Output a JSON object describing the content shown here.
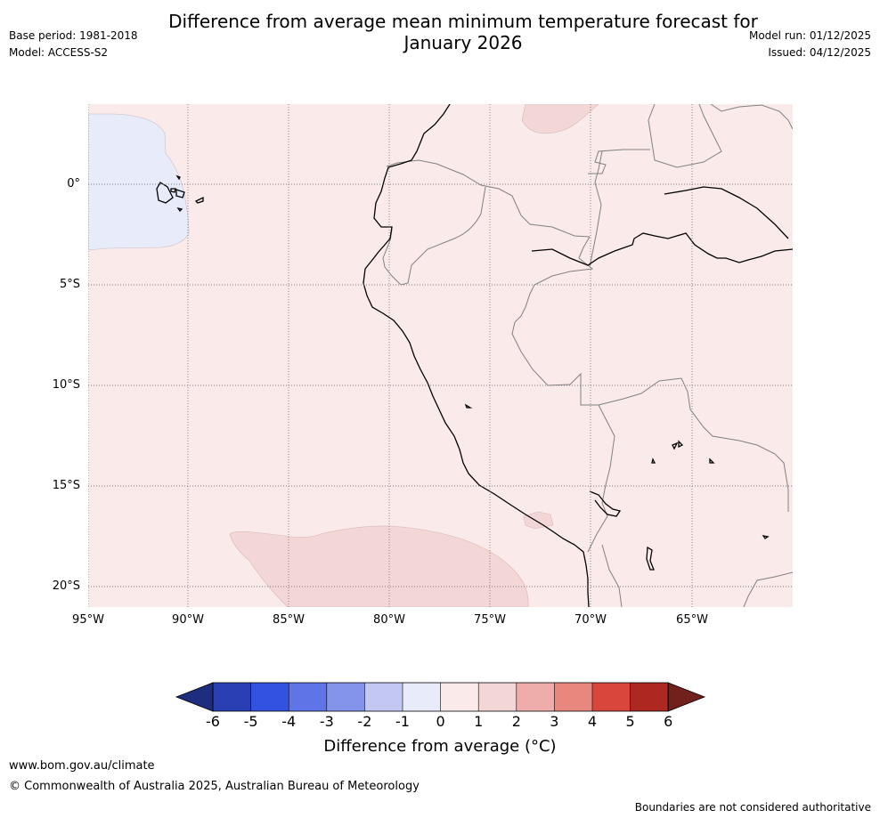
{
  "header": {
    "title_line1": "Difference from average mean minimum temperature forecast for",
    "title_line2": "January 2026",
    "base_period": "Base period: 1981-2018",
    "model": "Model: ACCESS-S2",
    "model_run": "Model run: 01/12/2025",
    "issued": "Issued: 04/12/2025"
  },
  "map": {
    "lat_labels": [
      "0°",
      "5°S",
      "10°S",
      "15°S",
      "20°S"
    ],
    "lon_labels": [
      "95°W",
      "90°W",
      "85°W",
      "80°W",
      "75°W",
      "70°W",
      "65°W"
    ],
    "colors": {
      "water": "#fbeaea",
      "land": "#fbeaea",
      "anomaly_cool": "#e7ebfa",
      "anomaly_warm": "#f2d7d6",
      "coast": "#000000",
      "border": "#808080"
    }
  },
  "colorbar": {
    "ticks": [
      "-6",
      "-5",
      "-4",
      "-3",
      "-2",
      "-1",
      "0",
      "1",
      "2",
      "3",
      "4",
      "5",
      "6"
    ],
    "colors": [
      "#1e2d7e",
      "#2a3fb3",
      "#3452e0",
      "#5f74e6",
      "#8494eb",
      "#c3c8f2",
      "#e8ebfa",
      "#fbeaea",
      "#f2d7d6",
      "#eeadaa",
      "#e8877e",
      "#d9473c",
      "#ad2820",
      "#72201b"
    ],
    "label": "Difference from average (°C)"
  },
  "footer": {
    "website": "www.bom.gov.au/climate",
    "copyright": "© Commonwealth of Australia 2025, Australian Bureau of Meteorology",
    "disclaimer": "Boundaries are not considered authoritative"
  }
}
